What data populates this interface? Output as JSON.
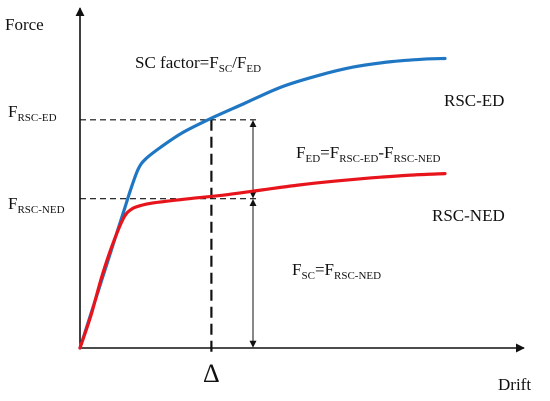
{
  "chart_data": {
    "type": "line",
    "title": "",
    "xlabel": "Drift",
    "ylabel": "Force",
    "colors": {
      "rsc_ed": "#1f77c4",
      "rsc_ned": "#e8141c",
      "axis": "#111111"
    },
    "series": [
      {
        "name": "RSC-ED",
        "points": [
          [
            0,
            0
          ],
          [
            0.04,
            0.14
          ],
          [
            0.08,
            0.28
          ],
          [
            0.12,
            0.42
          ],
          [
            0.14,
            0.49
          ],
          [
            0.16,
            0.55
          ],
          [
            0.18,
            0.58
          ],
          [
            0.22,
            0.615
          ],
          [
            0.28,
            0.66
          ],
          [
            0.36,
            0.705
          ],
          [
            0.45,
            0.75
          ],
          [
            0.55,
            0.8
          ],
          [
            0.65,
            0.835
          ],
          [
            0.75,
            0.862
          ],
          [
            0.85,
            0.878
          ],
          [
            0.94,
            0.886
          ],
          [
            1.0,
            0.888
          ]
        ]
      },
      {
        "name": "RSC-NED",
        "points": [
          [
            0,
            0
          ],
          [
            0.03,
            0.1
          ],
          [
            0.06,
            0.22
          ],
          [
            0.09,
            0.32
          ],
          [
            0.12,
            0.4
          ],
          [
            0.14,
            0.425
          ],
          [
            0.16,
            0.435
          ],
          [
            0.2,
            0.445
          ],
          [
            0.3,
            0.458
          ],
          [
            0.4,
            0.47
          ],
          [
            0.5,
            0.485
          ],
          [
            0.6,
            0.5
          ],
          [
            0.7,
            0.512
          ],
          [
            0.8,
            0.522
          ],
          [
            0.9,
            0.53
          ],
          [
            1.0,
            0.535
          ]
        ]
      }
    ],
    "annotations": {
      "formula_sc_factor": {
        "main": "SC factor=F",
        "sub1": "SC",
        "mid": "/F",
        "sub2": "ED"
      },
      "y_level_ed": {
        "main": "F",
        "sub": "RSC-ED",
        "value": 0.7
      },
      "y_level_ned": {
        "main": "F",
        "sub": "RSC-NED",
        "value": 0.458
      },
      "delta": {
        "label": "Δ",
        "x": 0.36
      },
      "fed_formula": {
        "f1": "F",
        "s1": "ED",
        "eq": "=F",
        "s2": "RSC-ED",
        "dash": "-F",
        "s3": "RSC-NED"
      },
      "fsc_formula": {
        "f1": "F",
        "s1": "SC",
        "eq": "=F",
        "s2": "RSC-NED"
      },
      "series_label_ed": "RSC-ED",
      "series_label_ned": "RSC-NED"
    }
  }
}
